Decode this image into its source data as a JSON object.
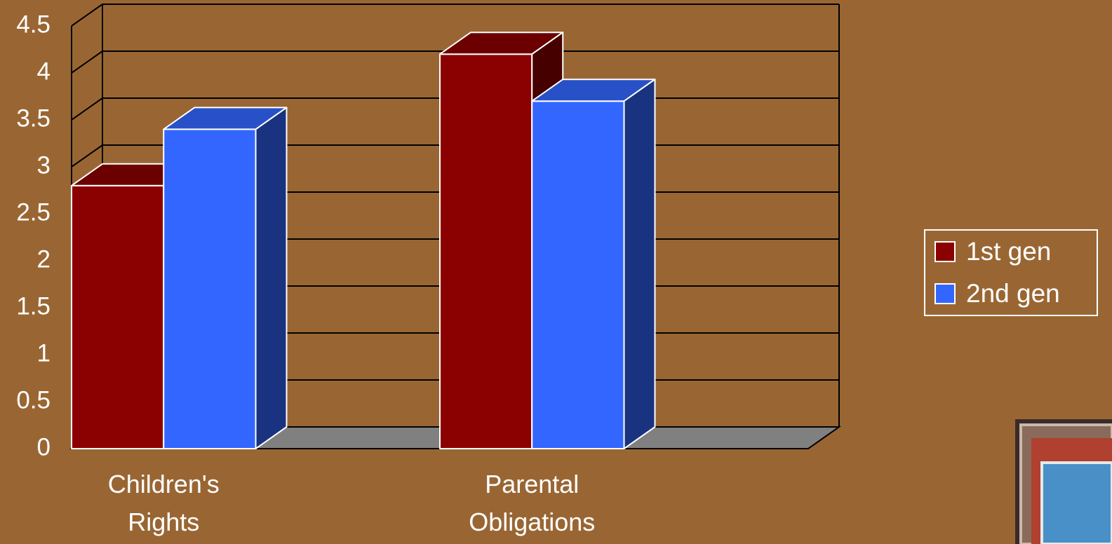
{
  "chart_data": {
    "type": "bar3d",
    "categories": [
      "Children's Rights",
      "Parental Obligations"
    ],
    "series": [
      {
        "name": "1st gen",
        "color": "#8b0000",
        "values": [
          2.8,
          4.2
        ]
      },
      {
        "name": "2nd gen",
        "color": "#3366ff",
        "values": [
          3.4,
          3.7
        ]
      }
    ],
    "ylim": [
      0,
      4.5
    ],
    "yticks": [
      0,
      0.5,
      1,
      1.5,
      2,
      2.5,
      3,
      3.5,
      4,
      4.5
    ],
    "grid": true,
    "legend": "right"
  }
}
